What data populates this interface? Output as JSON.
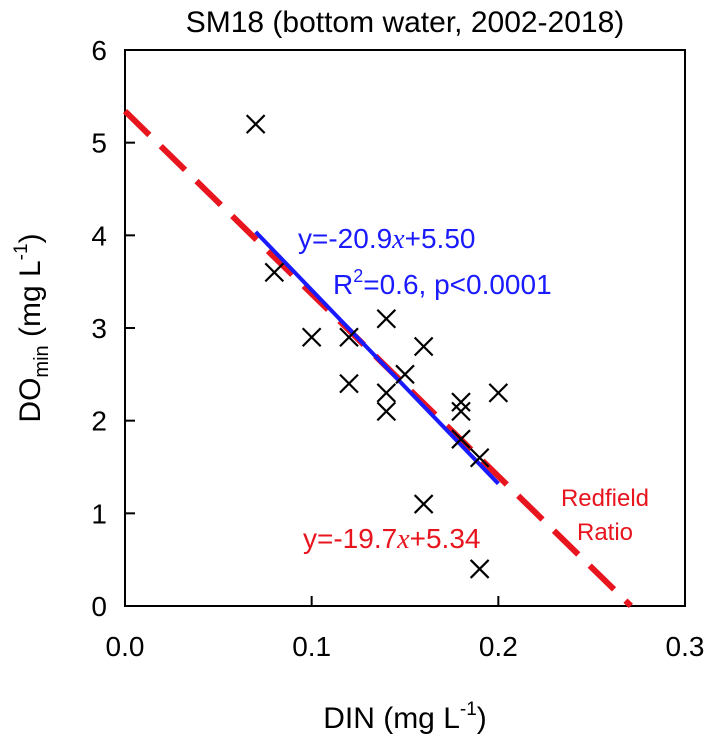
{
  "chart_data": {
    "type": "scatter",
    "title": "SM18 (bottom water, 2002-2018)",
    "xlabel": {
      "main": "DIN (mg L",
      "sup": "-1",
      "close": ")"
    },
    "ylabel": {
      "main": "DO",
      "sub": "min",
      "unit": " (mg L",
      "sup": "-1",
      "close": ")"
    },
    "xlim": [
      0.0,
      0.3
    ],
    "ylim": [
      0,
      6
    ],
    "xticks": [
      0.0,
      0.1,
      0.2,
      0.3
    ],
    "xtick_labels": [
      "0.0",
      "0.1",
      "0.2",
      "0.3"
    ],
    "yticks": [
      0,
      1,
      2,
      3,
      4,
      5,
      6
    ],
    "ytick_labels": [
      "0",
      "1",
      "2",
      "3",
      "4",
      "5",
      "6"
    ],
    "points": [
      {
        "x": 0.07,
        "y": 5.2
      },
      {
        "x": 0.08,
        "y": 3.6
      },
      {
        "x": 0.1,
        "y": 2.9
      },
      {
        "x": 0.12,
        "y": 2.9
      },
      {
        "x": 0.12,
        "y": 2.4
      },
      {
        "x": 0.14,
        "y": 3.1
      },
      {
        "x": 0.14,
        "y": 2.3
      },
      {
        "x": 0.14,
        "y": 2.1
      },
      {
        "x": 0.15,
        "y": 2.5
      },
      {
        "x": 0.16,
        "y": 2.8
      },
      {
        "x": 0.16,
        "y": 1.1
      },
      {
        "x": 0.18,
        "y": 2.2
      },
      {
        "x": 0.18,
        "y": 2.1
      },
      {
        "x": 0.18,
        "y": 1.8
      },
      {
        "x": 0.19,
        "y": 1.6
      },
      {
        "x": 0.19,
        "y": 0.4
      },
      {
        "x": 0.2,
        "y": 2.3
      }
    ],
    "fit_line": {
      "slope": -20.9,
      "intercept": 5.5,
      "x_range": [
        0.07,
        0.2
      ],
      "color": "#1a1aff",
      "equation": {
        "pre": "y=-20.9",
        "var": "x",
        "post": "+5.50"
      },
      "stats": {
        "pre": "R",
        "sup": "2",
        "post": "=0.6, p<0.0001"
      }
    },
    "redfield_line": {
      "slope": -19.7,
      "intercept": 5.34,
      "x_range": [
        0.0,
        0.271
      ],
      "color": "#e8141e",
      "style": "dashed",
      "equation": {
        "pre": "y=-19.7",
        "var": "x",
        "post": "+5.34"
      },
      "label_line1": "Redfield",
      "label_line2": "Ratio"
    },
    "marker": "x",
    "marker_color": "#000000"
  }
}
